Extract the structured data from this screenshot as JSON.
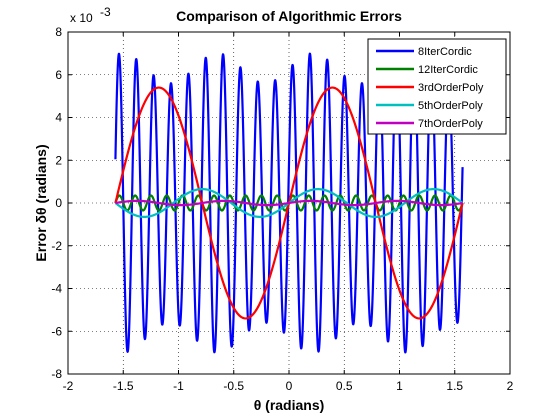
{
  "chart_data": {
    "type": "line",
    "title": "Comparison of Algorithmic Errors",
    "xlabel": "θ (radians)",
    "ylabel": "Error   δθ (radians)",
    "y_exponent_label": "x 10",
    "y_exponent_power": "-3",
    "xlim": [
      -2,
      2
    ],
    "ylim": [
      -8,
      8
    ],
    "y_scale_note": "y values in units of 1e-3 radians",
    "x_ticks": [
      "-2",
      "-1.5",
      "-1",
      "-0.5",
      "0",
      "0.5",
      "1",
      "1.5",
      "2"
    ],
    "y_ticks": [
      "-8",
      "-6",
      "-4",
      "-2",
      "0",
      "2",
      "4",
      "6",
      "8"
    ],
    "grid": true,
    "legend_position": "top-right",
    "series": [
      {
        "name": "8IterCordic",
        "color": "#0000ff",
        "x_range": [
          -1.5708,
          1.5708
        ],
        "shape": "rapid oscillation, amplitude ~7, about 40 half-cycles"
      },
      {
        "name": "12IterCordic",
        "color": "#008000",
        "x_range": [
          -1.5708,
          1.5708
        ],
        "shape": "small rapid oscillation, amplitude ~0.4"
      },
      {
        "name": "3rdOrderPoly",
        "color": "#ff0000",
        "x_range": [
          -1.5708,
          1.5708
        ],
        "peaks": [
          [
            -1.3,
            5.4
          ],
          [
            -0.27,
            -5.4
          ],
          [
            0.27,
            5.4
          ],
          [
            1.3,
            -5.4
          ]
        ],
        "zeros": [
          -1.5708,
          -0.785,
          0,
          0.785,
          1.5708
        ]
      },
      {
        "name": "5thOrderPoly",
        "color": "#00bfbf",
        "x_range": [
          -1.5708,
          1.5708
        ],
        "shape": "oscillation, amplitude ~0.7"
      },
      {
        "name": "7thOrderPoly",
        "color": "#bf00bf",
        "x_range": [
          -1.5708,
          1.5708
        ],
        "shape": "small oscillation, amplitude ~0.1"
      }
    ]
  }
}
